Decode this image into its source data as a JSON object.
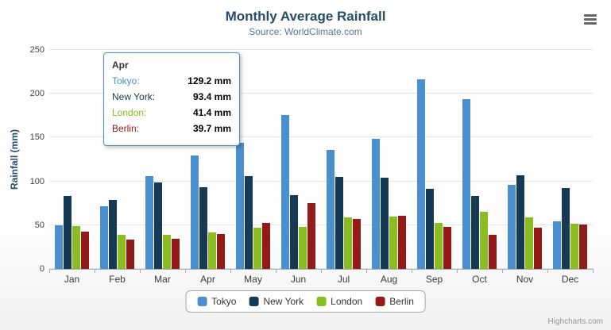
{
  "title": "Monthly Average Rainfall",
  "subtitle": "Source: WorldClimate.com",
  "credits": "Highcharts.com",
  "yaxis": {
    "title": "Rainfall (mm)",
    "ticks": [
      0,
      50,
      100,
      150,
      200,
      250
    ]
  },
  "tooltip": {
    "header": "Apr",
    "border_color": "#4a8fce",
    "rows": [
      {
        "label": "Tokyo:",
        "value": "129.2 mm",
        "color": "#4a8fce"
      },
      {
        "label": "New York:",
        "value": "93.4 mm",
        "color": "#173a54"
      },
      {
        "label": "London:",
        "value": "41.4 mm",
        "color": "#8bbc21"
      },
      {
        "label": "Berlin:",
        "value": "39.7 mm",
        "color": "#941a1a"
      }
    ]
  },
  "chart_data": {
    "type": "bar",
    "title": "Monthly Average Rainfall",
    "subtitle": "Source: WorldClimate.com",
    "xlabel": "",
    "ylabel": "Rainfall (mm)",
    "ylim": [
      0,
      250
    ],
    "grid": true,
    "legend_position": "bottom",
    "categories": [
      "Jan",
      "Feb",
      "Mar",
      "Apr",
      "May",
      "Jun",
      "Jul",
      "Aug",
      "Sep",
      "Oct",
      "Nov",
      "Dec"
    ],
    "series": [
      {
        "name": "Tokyo",
        "color": "#4a8fce",
        "values": [
          49.9,
          71.5,
          106.4,
          129.2,
          144.0,
          176.0,
          135.6,
          148.5,
          216.4,
          194.1,
          95.6,
          54.4
        ]
      },
      {
        "name": "New York",
        "color": "#173a54",
        "values": [
          83.6,
          78.8,
          98.5,
          93.4,
          106.0,
          84.5,
          105.0,
          104.3,
          91.2,
          83.5,
          106.6,
          92.3
        ]
      },
      {
        "name": "London",
        "color": "#8bbc21",
        "values": [
          48.9,
          38.8,
          39.3,
          41.4,
          47.0,
          48.3,
          59.0,
          59.6,
          52.4,
          65.2,
          59.3,
          51.2
        ]
      },
      {
        "name": "Berlin",
        "color": "#941a1a",
        "values": [
          42.4,
          33.2,
          34.5,
          39.7,
          52.6,
          75.5,
          57.4,
          60.4,
          47.6,
          39.1,
          46.8,
          51.1
        ]
      }
    ]
  }
}
